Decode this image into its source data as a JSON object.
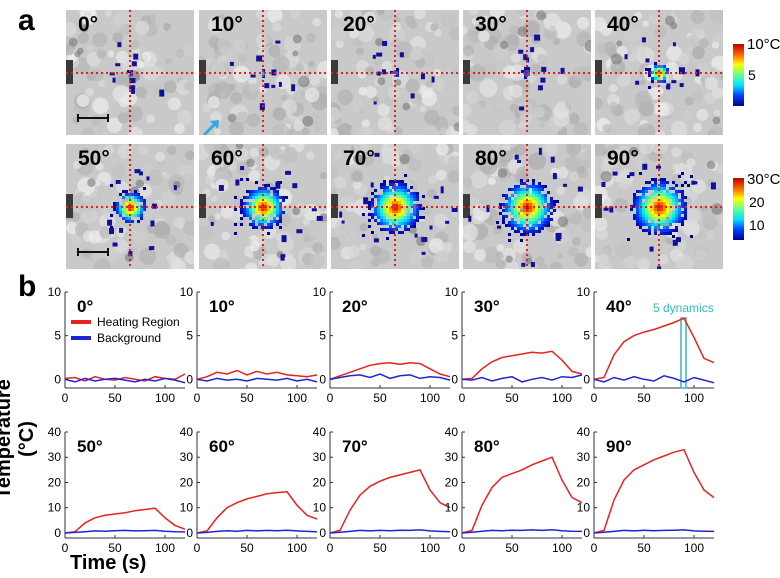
{
  "panel_a": {
    "label": "a",
    "angles_row1": [
      "0°",
      "10°",
      "20°",
      "30°",
      "40°"
    ],
    "angles_row2": [
      "50°",
      "60°",
      "70°",
      "80°",
      "90°"
    ],
    "colorbar_row1": {
      "max_label": "10°C",
      "mid_label": "5"
    },
    "colorbar_row2": {
      "max_label": "30°C",
      "mid_label": "20",
      "low_label": "10"
    },
    "colors": {
      "crosshair": "#e0221e",
      "arrow": "#2fa8e6"
    }
  },
  "panel_b": {
    "label": "b",
    "ylabel": "Temperature (°C)",
    "xlabel": "Time (s)"
  },
  "chart_data": [
    {
      "type": "line",
      "title": "0°",
      "ylim": [
        -1,
        10
      ],
      "yticks": [
        0,
        5,
        10
      ],
      "xticks": [
        0,
        50,
        100
      ],
      "series": [
        {
          "name": "Heating Region",
          "color": "#e8221e",
          "x": [
            0,
            10,
            20,
            30,
            40,
            50,
            60,
            70,
            80,
            90,
            100,
            110,
            120
          ],
          "y": [
            0.1,
            0.2,
            -0.2,
            0.3,
            0.0,
            -0.1,
            0.2,
            0.0,
            -0.2,
            0.3,
            0.1,
            0.0,
            0.6
          ]
        },
        {
          "name": "Background",
          "color": "#2323d6",
          "x": [
            0,
            10,
            20,
            30,
            40,
            50,
            60,
            70,
            80,
            90,
            100,
            110,
            120
          ],
          "y": [
            0.0,
            -0.3,
            0.1,
            -0.2,
            0.0,
            0.1,
            -0.1,
            -0.3,
            0.0,
            -0.2,
            0.1,
            -0.1,
            -0.4
          ]
        }
      ]
    },
    {
      "type": "line",
      "title": "10°",
      "ylim": [
        -1,
        10
      ],
      "yticks": [
        0,
        5,
        10
      ],
      "xticks": [
        0,
        50,
        100
      ],
      "series": [
        {
          "name": "Heating Region",
          "color": "#e8221e",
          "x": [
            0,
            10,
            20,
            30,
            40,
            50,
            60,
            70,
            80,
            90,
            100,
            110,
            120
          ],
          "y": [
            0.0,
            0.3,
            0.8,
            0.6,
            1.0,
            0.5,
            0.9,
            0.6,
            0.8,
            0.5,
            0.4,
            0.3,
            0.5
          ]
        },
        {
          "name": "Background",
          "color": "#2323d6",
          "x": [
            0,
            10,
            20,
            30,
            40,
            50,
            60,
            70,
            80,
            90,
            100,
            110,
            120
          ],
          "y": [
            0.0,
            -0.2,
            0.1,
            -0.1,
            0.0,
            -0.2,
            0.1,
            0.0,
            -0.1,
            0.1,
            -0.2,
            0.0,
            -0.3
          ]
        }
      ]
    },
    {
      "type": "line",
      "title": "20°",
      "ylim": [
        -1,
        10
      ],
      "yticks": [
        0,
        5,
        10
      ],
      "xticks": [
        0,
        50,
        100
      ],
      "series": [
        {
          "name": "Heating Region",
          "color": "#e8221e",
          "x": [
            0,
            10,
            20,
            30,
            40,
            50,
            60,
            70,
            80,
            90,
            100,
            110,
            120
          ],
          "y": [
            0.0,
            0.4,
            0.8,
            1.2,
            1.6,
            1.8,
            1.9,
            1.7,
            1.9,
            1.8,
            1.2,
            0.6,
            0.3
          ]
        },
        {
          "name": "Background",
          "color": "#2323d6",
          "x": [
            0,
            10,
            20,
            30,
            40,
            50,
            60,
            70,
            80,
            90,
            100,
            110,
            120
          ],
          "y": [
            0.0,
            0.2,
            0.4,
            0.5,
            0.2,
            0.6,
            0.1,
            0.4,
            0.5,
            0.1,
            0.3,
            0.2,
            -0.1
          ]
        }
      ]
    },
    {
      "type": "line",
      "title": "30°",
      "ylim": [
        -1,
        10
      ],
      "yticks": [
        0,
        5,
        10
      ],
      "xticks": [
        0,
        50,
        100
      ],
      "series": [
        {
          "name": "Heating Region",
          "color": "#e8221e",
          "x": [
            0,
            10,
            20,
            30,
            40,
            50,
            60,
            70,
            80,
            90,
            100,
            110,
            120
          ],
          "y": [
            0.0,
            0.1,
            1.2,
            2.0,
            2.5,
            2.7,
            2.9,
            3.1,
            3.0,
            3.2,
            2.2,
            0.9,
            0.6
          ]
        },
        {
          "name": "Background",
          "color": "#2323d6",
          "x": [
            0,
            10,
            20,
            30,
            40,
            50,
            60,
            70,
            80,
            90,
            100,
            110,
            120
          ],
          "y": [
            0.0,
            -0.1,
            0.2,
            -0.2,
            0.1,
            0.3,
            -0.3,
            0.0,
            0.2,
            -0.1,
            0.3,
            0.2,
            0.5
          ]
        }
      ]
    },
    {
      "type": "line",
      "title": "40°",
      "ylim": [
        -1,
        10
      ],
      "yticks": [
        0,
        5,
        10
      ],
      "xticks": [
        0,
        50,
        100
      ],
      "annotation": {
        "text": "5 dynamics",
        "x_range": [
          87,
          92
        ]
      },
      "series": [
        {
          "name": "Heating Region",
          "color": "#e8221e",
          "x": [
            0,
            10,
            20,
            30,
            40,
            50,
            60,
            70,
            80,
            90,
            100,
            110,
            120
          ],
          "y": [
            0.0,
            0.2,
            2.8,
            4.3,
            5.0,
            5.4,
            5.7,
            6.1,
            6.5,
            7.0,
            4.8,
            2.4,
            1.9
          ]
        },
        {
          "name": "Background",
          "color": "#2323d6",
          "x": [
            0,
            10,
            20,
            30,
            40,
            50,
            60,
            70,
            80,
            90,
            100,
            110,
            120
          ],
          "y": [
            0.0,
            -0.3,
            0.2,
            -0.1,
            0.3,
            0.0,
            -0.2,
            0.4,
            0.1,
            -0.3,
            0.2,
            -0.1,
            -0.4
          ]
        }
      ]
    },
    {
      "type": "line",
      "title": "50°",
      "ylim": [
        -2,
        40
      ],
      "yticks": [
        0,
        10,
        20,
        30,
        40
      ],
      "xticks": [
        0,
        50,
        100
      ],
      "series": [
        {
          "name": "Heating Region",
          "color": "#e8221e",
          "x": [
            0,
            10,
            20,
            30,
            40,
            50,
            60,
            70,
            80,
            90,
            100,
            110,
            120
          ],
          "y": [
            0.0,
            0.5,
            4.0,
            6.0,
            7.0,
            7.5,
            8.0,
            8.8,
            9.3,
            9.8,
            6.0,
            3.0,
            1.5
          ]
        },
        {
          "name": "Background",
          "color": "#2323d6",
          "x": [
            0,
            10,
            20,
            30,
            40,
            50,
            60,
            70,
            80,
            90,
            100,
            110,
            120
          ],
          "y": [
            0.0,
            0.2,
            0.5,
            0.8,
            0.7,
            0.9,
            1.0,
            0.8,
            0.9,
            1.0,
            0.7,
            0.5,
            0.4
          ]
        }
      ]
    },
    {
      "type": "line",
      "title": "60°",
      "ylim": [
        -2,
        40
      ],
      "yticks": [
        0,
        10,
        20,
        30,
        40
      ],
      "xticks": [
        0,
        50,
        100
      ],
      "series": [
        {
          "name": "Heating Region",
          "color": "#e8221e",
          "x": [
            0,
            10,
            20,
            30,
            40,
            50,
            60,
            70,
            80,
            90,
            100,
            110,
            120
          ],
          "y": [
            0.0,
            0.8,
            6.0,
            10.0,
            12.0,
            13.5,
            14.5,
            15.5,
            16.0,
            16.3,
            11.0,
            7.0,
            5.5
          ]
        },
        {
          "name": "Background",
          "color": "#2323d6",
          "x": [
            0,
            10,
            20,
            30,
            40,
            50,
            60,
            70,
            80,
            90,
            100,
            110,
            120
          ],
          "y": [
            0.0,
            0.2,
            0.6,
            0.9,
            0.7,
            1.0,
            0.8,
            1.0,
            0.9,
            1.1,
            0.8,
            0.6,
            0.5
          ]
        }
      ]
    },
    {
      "type": "line",
      "title": "70°",
      "ylim": [
        -2,
        40
      ],
      "yticks": [
        0,
        10,
        20,
        30,
        40
      ],
      "xticks": [
        0,
        50,
        100
      ],
      "series": [
        {
          "name": "Heating Region",
          "color": "#e8221e",
          "x": [
            0,
            10,
            20,
            30,
            40,
            50,
            60,
            70,
            80,
            90,
            100,
            110,
            120
          ],
          "y": [
            0.0,
            1.0,
            9.0,
            15.0,
            18.5,
            20.5,
            22.0,
            23.0,
            24.0,
            25.0,
            17.0,
            12.0,
            10.0
          ]
        },
        {
          "name": "Background",
          "color": "#2323d6",
          "x": [
            0,
            10,
            20,
            30,
            40,
            50,
            60,
            70,
            80,
            90,
            100,
            110,
            120
          ],
          "y": [
            0.0,
            0.3,
            0.6,
            1.0,
            0.8,
            1.0,
            0.9,
            1.1,
            1.0,
            1.2,
            0.8,
            0.6,
            0.5
          ]
        }
      ]
    },
    {
      "type": "line",
      "title": "80°",
      "ylim": [
        -2,
        40
      ],
      "yticks": [
        0,
        10,
        20,
        30,
        40
      ],
      "xticks": [
        0,
        50,
        100
      ],
      "series": [
        {
          "name": "Heating Region",
          "color": "#e8221e",
          "x": [
            0,
            10,
            20,
            30,
            40,
            50,
            60,
            70,
            80,
            90,
            100,
            110,
            120
          ],
          "y": [
            0.0,
            1.0,
            11.0,
            18.0,
            22.0,
            23.5,
            25.0,
            27.0,
            28.5,
            30.0,
            21.0,
            14.0,
            12.0
          ]
        },
        {
          "name": "Background",
          "color": "#2323d6",
          "x": [
            0,
            10,
            20,
            30,
            40,
            50,
            60,
            70,
            80,
            90,
            100,
            110,
            120
          ],
          "y": [
            0.0,
            0.3,
            0.7,
            1.0,
            0.9,
            1.1,
            1.0,
            1.2,
            1.0,
            1.3,
            0.9,
            0.7,
            0.6
          ]
        }
      ]
    },
    {
      "type": "line",
      "title": "90°",
      "ylim": [
        -2,
        40
      ],
      "yticks": [
        0,
        10,
        20,
        30,
        40
      ],
      "xticks": [
        0,
        50,
        100
      ],
      "series": [
        {
          "name": "Heating Region",
          "color": "#e8221e",
          "x": [
            0,
            10,
            20,
            30,
            40,
            50,
            60,
            70,
            80,
            90,
            100,
            110,
            120
          ],
          "y": [
            0.0,
            1.0,
            13.0,
            21.0,
            25.0,
            27.0,
            29.0,
            30.5,
            32.0,
            33.0,
            24.0,
            17.0,
            14.0
          ]
        },
        {
          "name": "Background",
          "color": "#2323d6",
          "x": [
            0,
            10,
            20,
            30,
            40,
            50,
            60,
            70,
            80,
            90,
            100,
            110,
            120
          ],
          "y": [
            0.0,
            0.3,
            0.6,
            1.0,
            0.8,
            1.1,
            0.9,
            1.0,
            1.1,
            1.2,
            0.8,
            0.7,
            0.6
          ]
        }
      ]
    }
  ]
}
